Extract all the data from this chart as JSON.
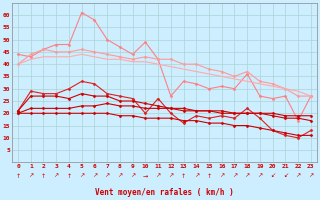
{
  "x": [
    0,
    1,
    2,
    3,
    4,
    5,
    6,
    7,
    8,
    9,
    10,
    11,
    12,
    13,
    14,
    15,
    16,
    17,
    18,
    19,
    20,
    21,
    22,
    23
  ],
  "lines": [
    {
      "label": "rafales_max_spike",
      "color": "#ff8080",
      "linewidth": 0.8,
      "marker": "D",
      "markersize": 1.5,
      "y": [
        44,
        43,
        46,
        48,
        48,
        61,
        58,
        50,
        47,
        44,
        49,
        42,
        27,
        33,
        32,
        30,
        31,
        30,
        36,
        27,
        26,
        27,
        17,
        27
      ]
    },
    {
      "label": "rafales_upper",
      "color": "#ff9999",
      "linewidth": 0.8,
      "marker": "D",
      "markersize": 1.5,
      "y": [
        40,
        44,
        46,
        45,
        45,
        46,
        45,
        44,
        43,
        42,
        43,
        42,
        42,
        40,
        40,
        38,
        37,
        35,
        37,
        33,
        32,
        30,
        27,
        27
      ]
    },
    {
      "label": "rafales_lower",
      "color": "#ffaaaa",
      "linewidth": 0.8,
      "marker": null,
      "markersize": 0,
      "y": [
        40,
        42,
        43,
        43,
        43,
        44,
        43,
        42,
        42,
        41,
        41,
        40,
        39,
        38,
        37,
        36,
        35,
        34,
        33,
        32,
        31,
        30,
        29,
        27
      ]
    },
    {
      "label": "vent_max",
      "color": "#dd2020",
      "linewidth": 0.8,
      "marker": "D",
      "markersize": 1.5,
      "y": [
        21,
        29,
        28,
        28,
        30,
        33,
        32,
        28,
        27,
        26,
        20,
        26,
        20,
        16,
        19,
        18,
        19,
        18,
        22,
        18,
        13,
        11,
        10,
        13
      ]
    },
    {
      "label": "vent_moy1",
      "color": "#cc0000",
      "linewidth": 0.8,
      "marker": "D",
      "markersize": 1.5,
      "y": [
        21,
        27,
        27,
        27,
        26,
        28,
        27,
        27,
        25,
        25,
        24,
        23,
        22,
        22,
        21,
        21,
        21,
        20,
        20,
        20,
        19,
        18,
        18,
        17
      ]
    },
    {
      "label": "vent_moy2",
      "color": "#cc0000",
      "linewidth": 0.8,
      "marker": "D",
      "markersize": 1.5,
      "y": [
        20,
        22,
        22,
        22,
        22,
        23,
        23,
        24,
        23,
        23,
        22,
        22,
        22,
        21,
        21,
        21,
        20,
        20,
        20,
        20,
        20,
        19,
        19,
        19
      ]
    },
    {
      "label": "vent_min",
      "color": "#cc0000",
      "linewidth": 0.8,
      "marker": "D",
      "markersize": 1.5,
      "y": [
        20,
        20,
        20,
        20,
        20,
        20,
        20,
        20,
        19,
        19,
        18,
        18,
        18,
        17,
        17,
        16,
        16,
        15,
        15,
        14,
        13,
        12,
        11,
        11
      ]
    }
  ],
  "arrows": [
    "↑",
    "↗",
    "↑",
    "↗",
    "↑",
    "↗",
    "↗",
    "↗",
    "↗",
    "↗",
    "→",
    "↗",
    "↗",
    "↑",
    "↗",
    "↑",
    "↗",
    "↗",
    "↗",
    "↗",
    "↙",
    "↙",
    "↗",
    "↗"
  ],
  "ylim": [
    0,
    65
  ],
  "yticks": [
    5,
    10,
    15,
    20,
    25,
    30,
    35,
    40,
    45,
    50,
    55,
    60
  ],
  "xlim": [
    -0.5,
    23.5
  ],
  "xlabel": "Vent moyen/en rafales ( km/h )",
  "background_color": "#cceeff",
  "grid_color": "#aad4d4",
  "tick_color": "#cc0000",
  "label_color": "#cc0000"
}
